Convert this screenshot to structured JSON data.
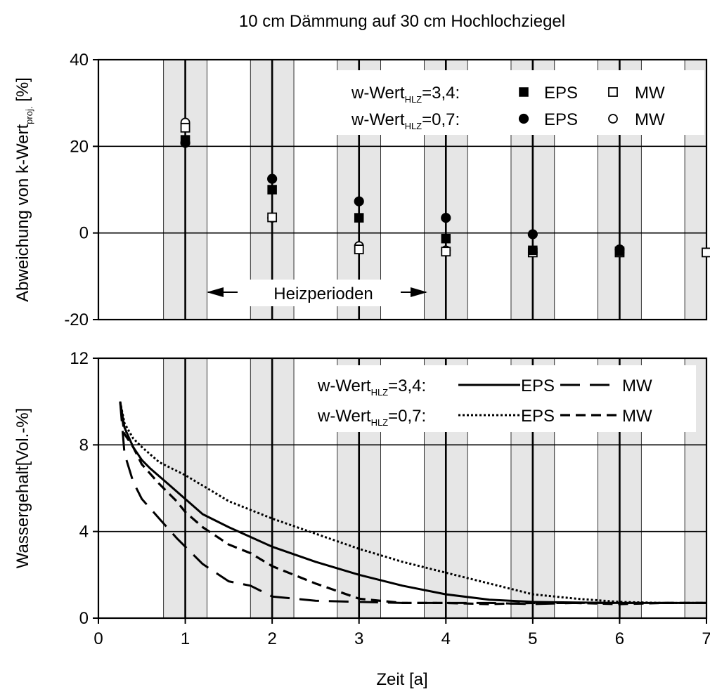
{
  "title": "10 cm Dämmung auf 30 cm Hochlochziegel",
  "xlabel": "Zeit [a]",
  "colors": {
    "band": "#e6e6e6",
    "ink": "#000000",
    "paper": "#ffffff"
  },
  "heating_bands": [
    [
      0.75,
      1.25
    ],
    [
      1.75,
      2.25
    ],
    [
      2.75,
      3.25
    ],
    [
      3.75,
      4.25
    ],
    [
      4.75,
      5.25
    ],
    [
      5.75,
      6.25
    ],
    [
      6.75,
      7.0
    ]
  ],
  "chart_data": [
    {
      "type": "scatter",
      "ylabel": "Abweichung von k-Wert",
      "ylabel_sub": "proj.",
      "ylabel_unit": " [%]",
      "xlim": [
        0,
        7
      ],
      "ylim": [
        -20,
        40
      ],
      "yticks": [
        -20,
        0,
        20,
        40
      ],
      "annotation": "Heizperioden",
      "legend": {
        "placement": "top-right",
        "rows": [
          {
            "prefix": "w-Wert",
            "sub": "HLZ",
            "suffix": "=3,4:",
            "items": [
              {
                "marker": "square-filled",
                "label": "EPS"
              },
              {
                "marker": "square-open",
                "label": "MW"
              }
            ]
          },
          {
            "prefix": "w-Wert",
            "sub": "HLZ",
            "suffix": "=0,7:",
            "items": [
              {
                "marker": "circle-filled",
                "label": "EPS"
              },
              {
                "marker": "circle-open",
                "label": "MW"
              }
            ]
          }
        ]
      },
      "series": [
        {
          "marker": "circle-open",
          "x": [
            1,
            2,
            3,
            4,
            5,
            6,
            7
          ],
          "y": [
            25.5,
            3.5,
            -3,
            -4,
            -4.5,
            -4.5,
            -4.5
          ]
        },
        {
          "marker": "square-open",
          "x": [
            1,
            2,
            3,
            4,
            5,
            6,
            7
          ],
          "y": [
            24.3,
            3.6,
            -3.8,
            -4.3,
            -4.5,
            -4.5,
            -4.5
          ]
        },
        {
          "marker": "square-filled",
          "x": [
            1,
            2,
            3,
            4,
            5,
            6
          ],
          "y": [
            21.5,
            10,
            3.5,
            -1.3,
            -4,
            -4.2
          ]
        },
        {
          "marker": "circle-filled",
          "x": [
            1,
            2,
            3,
            4,
            5,
            6
          ],
          "y": [
            20.8,
            12.5,
            7.3,
            3.5,
            -0.3,
            -3.8
          ]
        }
      ]
    },
    {
      "type": "line",
      "ylabel": "Wassergehalt[Vol.-%]",
      "xlim": [
        0,
        7
      ],
      "ylim": [
        0,
        12
      ],
      "yticks": [
        0,
        4,
        8,
        12
      ],
      "xticks": [
        0,
        1,
        2,
        3,
        4,
        5,
        6,
        7
      ],
      "legend": {
        "placement": "top-right",
        "rows": [
          {
            "prefix": "w-Wert",
            "sub": "HLZ",
            "suffix": "=3,4:",
            "items": [
              {
                "style": "solid",
                "label": "EPS"
              },
              {
                "style": "longdash",
                "label": "MW"
              }
            ]
          },
          {
            "prefix": "w-Wert",
            "sub": "HLZ",
            "suffix": "=0,7:",
            "items": [
              {
                "style": "dotted",
                "label": "EPS"
              },
              {
                "style": "dash",
                "label": "MW"
              }
            ]
          }
        ]
      },
      "series": [
        {
          "style": "solid",
          "x": [
            0.25,
            0.3,
            0.4,
            0.5,
            0.6,
            0.8,
            1.0,
            1.2,
            1.5,
            2.0,
            2.5,
            3.0,
            3.5,
            4.0,
            4.5,
            5.0,
            5.5,
            6.0,
            6.5,
            7.0
          ],
          "y": [
            10.0,
            8.8,
            7.9,
            7.3,
            6.9,
            6.2,
            5.5,
            4.8,
            4.2,
            3.3,
            2.6,
            2.0,
            1.5,
            1.1,
            0.85,
            0.75,
            0.72,
            0.7,
            0.7,
            0.7
          ]
        },
        {
          "style": "dotted",
          "x": [
            0.25,
            0.3,
            0.4,
            0.5,
            0.7,
            1.0,
            1.5,
            2.0,
            2.5,
            3.0,
            3.5,
            4.0,
            4.5,
            5.0,
            5.5,
            6.0,
            6.5,
            7.0
          ],
          "y": [
            10.0,
            9.0,
            8.3,
            7.9,
            7.2,
            6.6,
            5.4,
            4.6,
            3.9,
            3.2,
            2.6,
            2.1,
            1.6,
            1.1,
            0.9,
            0.75,
            0.7,
            0.7
          ]
        },
        {
          "style": "dash",
          "x": [
            0.25,
            0.3,
            0.4,
            0.5,
            0.7,
            0.9,
            1.0,
            1.2,
            1.5,
            1.75,
            2.0,
            2.5,
            3.0,
            3.5,
            4.0,
            4.5,
            5.0,
            5.5,
            6.0,
            6.5,
            7.0
          ],
          "y": [
            10.0,
            8.5,
            7.9,
            7.1,
            6.2,
            5.4,
            4.9,
            4.2,
            3.4,
            3.0,
            2.4,
            1.6,
            0.9,
            0.7,
            0.7,
            0.65,
            0.7,
            0.7,
            0.65,
            0.7,
            0.7
          ]
        },
        {
          "style": "longdash",
          "x": [
            0.25,
            0.3,
            0.4,
            0.5,
            0.7,
            0.9,
            1.0,
            1.2,
            1.5,
            1.75,
            2.0,
            2.5,
            3.0,
            3.5,
            4.0,
            4.5,
            5.0,
            5.5,
            6.0,
            6.5,
            7.0
          ],
          "y": [
            10.0,
            7.6,
            6.3,
            5.5,
            4.6,
            3.7,
            3.3,
            2.5,
            1.7,
            1.5,
            1.0,
            0.8,
            0.75,
            0.7,
            0.7,
            0.7,
            0.65,
            0.7,
            0.7,
            0.7,
            0.7
          ]
        }
      ]
    }
  ]
}
